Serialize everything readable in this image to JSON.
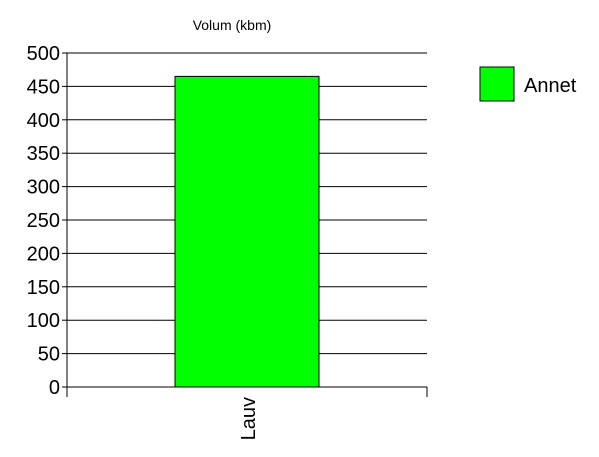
{
  "chart_data": {
    "type": "bar",
    "title": "Volum (kbm)",
    "categories": [
      "Lauv"
    ],
    "series": [
      {
        "name": "Annet",
        "values": [
          465
        ],
        "color": "#00ff00"
      }
    ],
    "ylim": [
      0,
      500
    ],
    "yticks": [
      0,
      50,
      100,
      150,
      200,
      250,
      300,
      350,
      400,
      450,
      500
    ],
    "grid": true,
    "legend": "right",
    "category_label_orientation": "vertical"
  }
}
